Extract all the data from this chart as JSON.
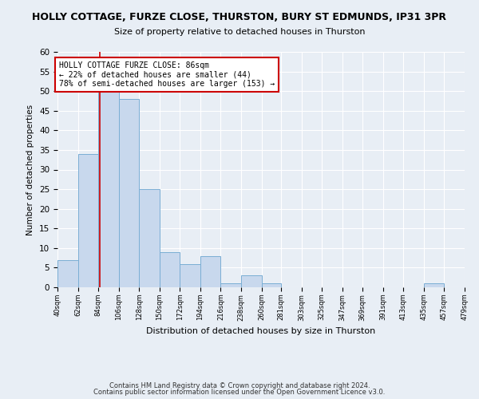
{
  "title": "HOLLY COTTAGE, FURZE CLOSE, THURSTON, BURY ST EDMUNDS, IP31 3PR",
  "subtitle": "Size of property relative to detached houses in Thurston",
  "xlabel": "Distribution of detached houses by size in Thurston",
  "ylabel": "Number of detached properties",
  "bin_edges": [
    40,
    62,
    84,
    106,
    128,
    150,
    172,
    194,
    216,
    238,
    260,
    281,
    303,
    325,
    347,
    369,
    391,
    413,
    435,
    457,
    479
  ],
  "bin_counts": [
    7,
    34,
    50,
    48,
    25,
    9,
    6,
    8,
    1,
    3,
    1,
    0,
    0,
    0,
    0,
    0,
    0,
    0,
    1,
    0
  ],
  "bar_color": "#c8d8ed",
  "bar_edge_color": "#7aaed4",
  "property_line_x": 86,
  "property_line_color": "#cc0000",
  "annotation_line1": "HOLLY COTTAGE FURZE CLOSE: 86sqm",
  "annotation_line2": "← 22% of detached houses are smaller (44)",
  "annotation_line3": "78% of semi-detached houses are larger (153) →",
  "annotation_box_color": "#ffffff",
  "annotation_box_edge_color": "#cc0000",
  "ylim": [
    0,
    60
  ],
  "tick_labels": [
    "40sqm",
    "62sqm",
    "84sqm",
    "106sqm",
    "128sqm",
    "150sqm",
    "172sqm",
    "194sqm",
    "216sqm",
    "238sqm",
    "260sqm",
    "281sqm",
    "303sqm",
    "325sqm",
    "347sqm",
    "369sqm",
    "391sqm",
    "413sqm",
    "435sqm",
    "457sqm",
    "479sqm"
  ],
  "footnote1": "Contains HM Land Registry data © Crown copyright and database right 2024.",
  "footnote2": "Contains public sector information licensed under the Open Government Licence v3.0.",
  "background_color": "#e8eef5",
  "grid_color": "#ffffff"
}
